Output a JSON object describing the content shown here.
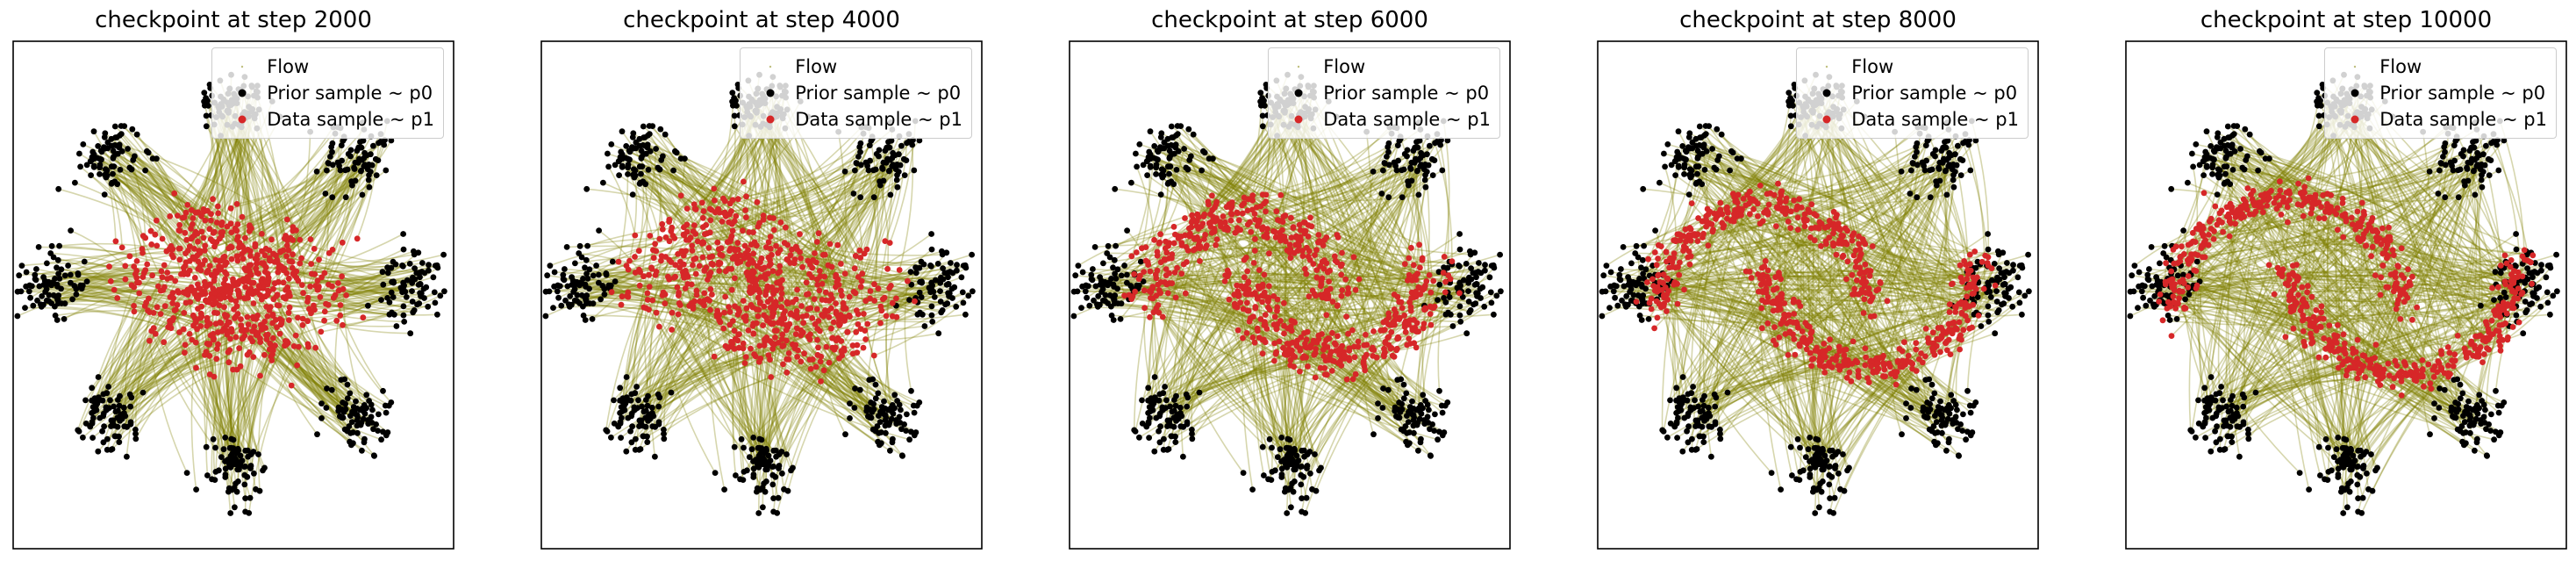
{
  "figure": {
    "legend": [
      {
        "label": "Flow",
        "color": "#808000",
        "marker": "line"
      },
      {
        "label": "Prior sample ~ p0",
        "color": "#000000",
        "marker": "dot"
      },
      {
        "label": "Data sample ~ p1",
        "color": "#d62728",
        "marker": "dot"
      }
    ]
  },
  "chart_data": [
    {
      "type": "scatter",
      "title": "checkpoint at step 2000",
      "step": 2000,
      "prior": {
        "name": "Prior sample ~ p0",
        "color": "#000000",
        "distribution": "8 gaussians on circle",
        "centers": [
          [
            0,
            4
          ],
          [
            2.83,
            2.83
          ],
          [
            4,
            0
          ],
          [
            2.83,
            -2.83
          ],
          [
            0,
            -4
          ],
          [
            -2.83,
            -2.83
          ],
          [
            -4,
            0
          ],
          [
            -2.83,
            2.83
          ]
        ]
      },
      "data": {
        "name": "Data sample ~ p1",
        "color": "#d62728",
        "distribution": "two moons"
      },
      "flow": {
        "name": "Flow",
        "color": "#808000"
      },
      "fit": 0.35,
      "xlim": [
        -5,
        5
      ],
      "ylim": [
        -5.8,
        5.4
      ],
      "grid": false,
      "legend_position": "upper right"
    },
    {
      "type": "scatter",
      "title": "checkpoint at step 4000",
      "step": 4000,
      "prior": {
        "name": "Prior sample ~ p0",
        "color": "#000000",
        "distribution": "8 gaussians on circle",
        "centers": [
          [
            0,
            4
          ],
          [
            2.83,
            2.83
          ],
          [
            4,
            0
          ],
          [
            2.83,
            -2.83
          ],
          [
            0,
            -4
          ],
          [
            -2.83,
            -2.83
          ],
          [
            -4,
            0
          ],
          [
            -2.83,
            2.83
          ]
        ]
      },
      "data": {
        "name": "Data sample ~ p1",
        "color": "#d62728",
        "distribution": "two moons"
      },
      "flow": {
        "name": "Flow",
        "color": "#808000"
      },
      "fit": 0.6,
      "xlim": [
        -5,
        5
      ],
      "ylim": [
        -5.8,
        5.4
      ],
      "grid": false,
      "legend_position": "upper right"
    },
    {
      "type": "scatter",
      "title": "checkpoint at step 6000",
      "step": 6000,
      "prior": {
        "name": "Prior sample ~ p0",
        "color": "#000000",
        "distribution": "8 gaussians on circle",
        "centers": [
          [
            0,
            4
          ],
          [
            2.83,
            2.83
          ],
          [
            4,
            0
          ],
          [
            2.83,
            -2.83
          ],
          [
            0,
            -4
          ],
          [
            -2.83,
            -2.83
          ],
          [
            -4,
            0
          ],
          [
            -2.83,
            2.83
          ]
        ]
      },
      "data": {
        "name": "Data sample ~ p1",
        "color": "#d62728",
        "distribution": "two moons"
      },
      "flow": {
        "name": "Flow",
        "color": "#808000"
      },
      "fit": 0.8,
      "xlim": [
        -5,
        5
      ],
      "ylim": [
        -5.8,
        5.4
      ],
      "grid": false,
      "legend_position": "upper right"
    },
    {
      "type": "scatter",
      "title": "checkpoint at step 8000",
      "step": 8000,
      "prior": {
        "name": "Prior sample ~ p0",
        "color": "#000000",
        "distribution": "8 gaussians on circle",
        "centers": [
          [
            0,
            4
          ],
          [
            2.83,
            2.83
          ],
          [
            4,
            0
          ],
          [
            2.83,
            -2.83
          ],
          [
            0,
            -4
          ],
          [
            -2.83,
            -2.83
          ],
          [
            -4,
            0
          ],
          [
            -2.83,
            2.83
          ]
        ]
      },
      "data": {
        "name": "Data sample ~ p1",
        "color": "#d62728",
        "distribution": "two moons"
      },
      "flow": {
        "name": "Flow",
        "color": "#808000"
      },
      "fit": 0.92,
      "xlim": [
        -5,
        5
      ],
      "ylim": [
        -5.8,
        5.4
      ],
      "grid": false,
      "legend_position": "upper right"
    },
    {
      "type": "scatter",
      "title": "checkpoint at step 10000",
      "step": 10000,
      "prior": {
        "name": "Prior sample ~ p0",
        "color": "#000000",
        "distribution": "8 gaussians on circle",
        "centers": [
          [
            0,
            4
          ],
          [
            2.83,
            2.83
          ],
          [
            4,
            0
          ],
          [
            2.83,
            -2.83
          ],
          [
            0,
            -4
          ],
          [
            -2.83,
            -2.83
          ],
          [
            -4,
            0
          ],
          [
            -2.83,
            2.83
          ]
        ]
      },
      "data": {
        "name": "Data sample ~ p1",
        "color": "#d62728",
        "distribution": "two moons"
      },
      "flow": {
        "name": "Flow",
        "color": "#808000"
      },
      "fit": 1.0,
      "xlim": [
        -5,
        5
      ],
      "ylim": [
        -5.8,
        5.4
      ],
      "grid": false,
      "legend_position": "upper right"
    }
  ]
}
